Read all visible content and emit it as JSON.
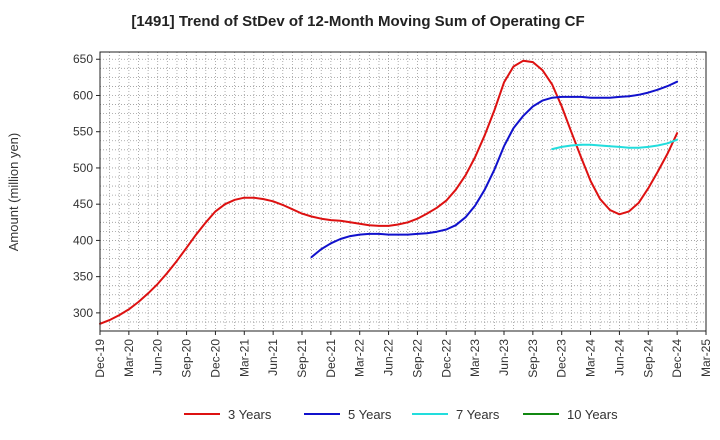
{
  "chart_data": {
    "type": "line",
    "title": "[1491]  Trend of StDev of 12-Month Moving Sum of Operating CF",
    "xlabel": "",
    "ylabel": "Amount (million yen)",
    "ylim": [
      275,
      660
    ],
    "yticks": [
      300,
      350,
      400,
      450,
      500,
      550,
      600,
      650
    ],
    "x_tick_labels": [
      "Dec-19",
      "Mar-20",
      "Jun-20",
      "Sep-20",
      "Dec-20",
      "Mar-21",
      "Jun-21",
      "Sep-21",
      "Dec-21",
      "Mar-22",
      "Jun-22",
      "Sep-22",
      "Dec-22",
      "Mar-23",
      "Jun-23",
      "Sep-23",
      "Dec-23",
      "Mar-24",
      "Jun-24",
      "Sep-24",
      "Dec-24",
      "Mar-25"
    ],
    "grid": true,
    "legend_position": "bottom",
    "series": [
      {
        "name": "3 Years",
        "color": "#dd1111",
        "points": [
          [
            0,
            285
          ],
          [
            0.33,
            290
          ],
          [
            0.67,
            297
          ],
          [
            1,
            305
          ],
          [
            1.33,
            315
          ],
          [
            1.67,
            327
          ],
          [
            2,
            340
          ],
          [
            2.33,
            355
          ],
          [
            2.67,
            372
          ],
          [
            3,
            390
          ],
          [
            3.33,
            408
          ],
          [
            3.67,
            425
          ],
          [
            4,
            440
          ],
          [
            4.33,
            450
          ],
          [
            4.67,
            456
          ],
          [
            5,
            459
          ],
          [
            5.33,
            459
          ],
          [
            5.67,
            457
          ],
          [
            6,
            454
          ],
          [
            6.33,
            449
          ],
          [
            6.67,
            443
          ],
          [
            7,
            437
          ],
          [
            7.33,
            433
          ],
          [
            7.67,
            430
          ],
          [
            8,
            428
          ],
          [
            8.33,
            427
          ],
          [
            8.67,
            425
          ],
          [
            9,
            423
          ],
          [
            9.33,
            421
          ],
          [
            9.67,
            420
          ],
          [
            10,
            420
          ],
          [
            10.33,
            422
          ],
          [
            10.67,
            425
          ],
          [
            11,
            430
          ],
          [
            11.33,
            437
          ],
          [
            11.67,
            445
          ],
          [
            12,
            455
          ],
          [
            12.33,
            470
          ],
          [
            12.67,
            490
          ],
          [
            13,
            515
          ],
          [
            13.33,
            545
          ],
          [
            13.67,
            580
          ],
          [
            14,
            618
          ],
          [
            14.33,
            640
          ],
          [
            14.67,
            648
          ],
          [
            15,
            646
          ],
          [
            15.33,
            635
          ],
          [
            15.67,
            615
          ],
          [
            16,
            585
          ],
          [
            16.33,
            550
          ],
          [
            16.67,
            515
          ],
          [
            17,
            482
          ],
          [
            17.33,
            457
          ],
          [
            17.67,
            442
          ],
          [
            18,
            436
          ],
          [
            18.33,
            440
          ],
          [
            18.67,
            452
          ],
          [
            19,
            472
          ],
          [
            19.33,
            495
          ],
          [
            19.67,
            520
          ],
          [
            20,
            548
          ]
        ]
      },
      {
        "name": "5 Years",
        "color": "#1111cc",
        "points": [
          [
            7.33,
            377
          ],
          [
            7.67,
            388
          ],
          [
            8,
            396
          ],
          [
            8.33,
            402
          ],
          [
            8.67,
            406
          ],
          [
            9,
            408
          ],
          [
            9.33,
            409
          ],
          [
            9.67,
            409
          ],
          [
            10,
            408
          ],
          [
            10.33,
            408
          ],
          [
            10.67,
            408
          ],
          [
            11,
            409
          ],
          [
            11.33,
            410
          ],
          [
            11.67,
            412
          ],
          [
            12,
            415
          ],
          [
            12.33,
            421
          ],
          [
            12.67,
            432
          ],
          [
            13,
            448
          ],
          [
            13.33,
            470
          ],
          [
            13.67,
            498
          ],
          [
            14,
            530
          ],
          [
            14.33,
            555
          ],
          [
            14.67,
            572
          ],
          [
            15,
            585
          ],
          [
            15.33,
            593
          ],
          [
            15.67,
            597
          ],
          [
            16,
            598
          ],
          [
            16.33,
            598
          ],
          [
            16.67,
            598
          ],
          [
            17,
            597
          ],
          [
            17.33,
            597
          ],
          [
            17.67,
            597
          ],
          [
            18,
            598
          ],
          [
            18.33,
            599
          ],
          [
            18.67,
            601
          ],
          [
            19,
            604
          ],
          [
            19.33,
            608
          ],
          [
            19.67,
            613
          ],
          [
            20,
            619
          ]
        ]
      },
      {
        "name": "7 Years",
        "color": "#22dddd",
        "points": [
          [
            15.67,
            526
          ],
          [
            16,
            529
          ],
          [
            16.33,
            531
          ],
          [
            16.67,
            532
          ],
          [
            17,
            532
          ],
          [
            17.33,
            531
          ],
          [
            17.67,
            530
          ],
          [
            18,
            529
          ],
          [
            18.33,
            528
          ],
          [
            18.67,
            528
          ],
          [
            19,
            529
          ],
          [
            19.33,
            531
          ],
          [
            19.67,
            534
          ],
          [
            20,
            539
          ]
        ]
      },
      {
        "name": "10 Years",
        "color": "#118811",
        "points": []
      }
    ]
  }
}
